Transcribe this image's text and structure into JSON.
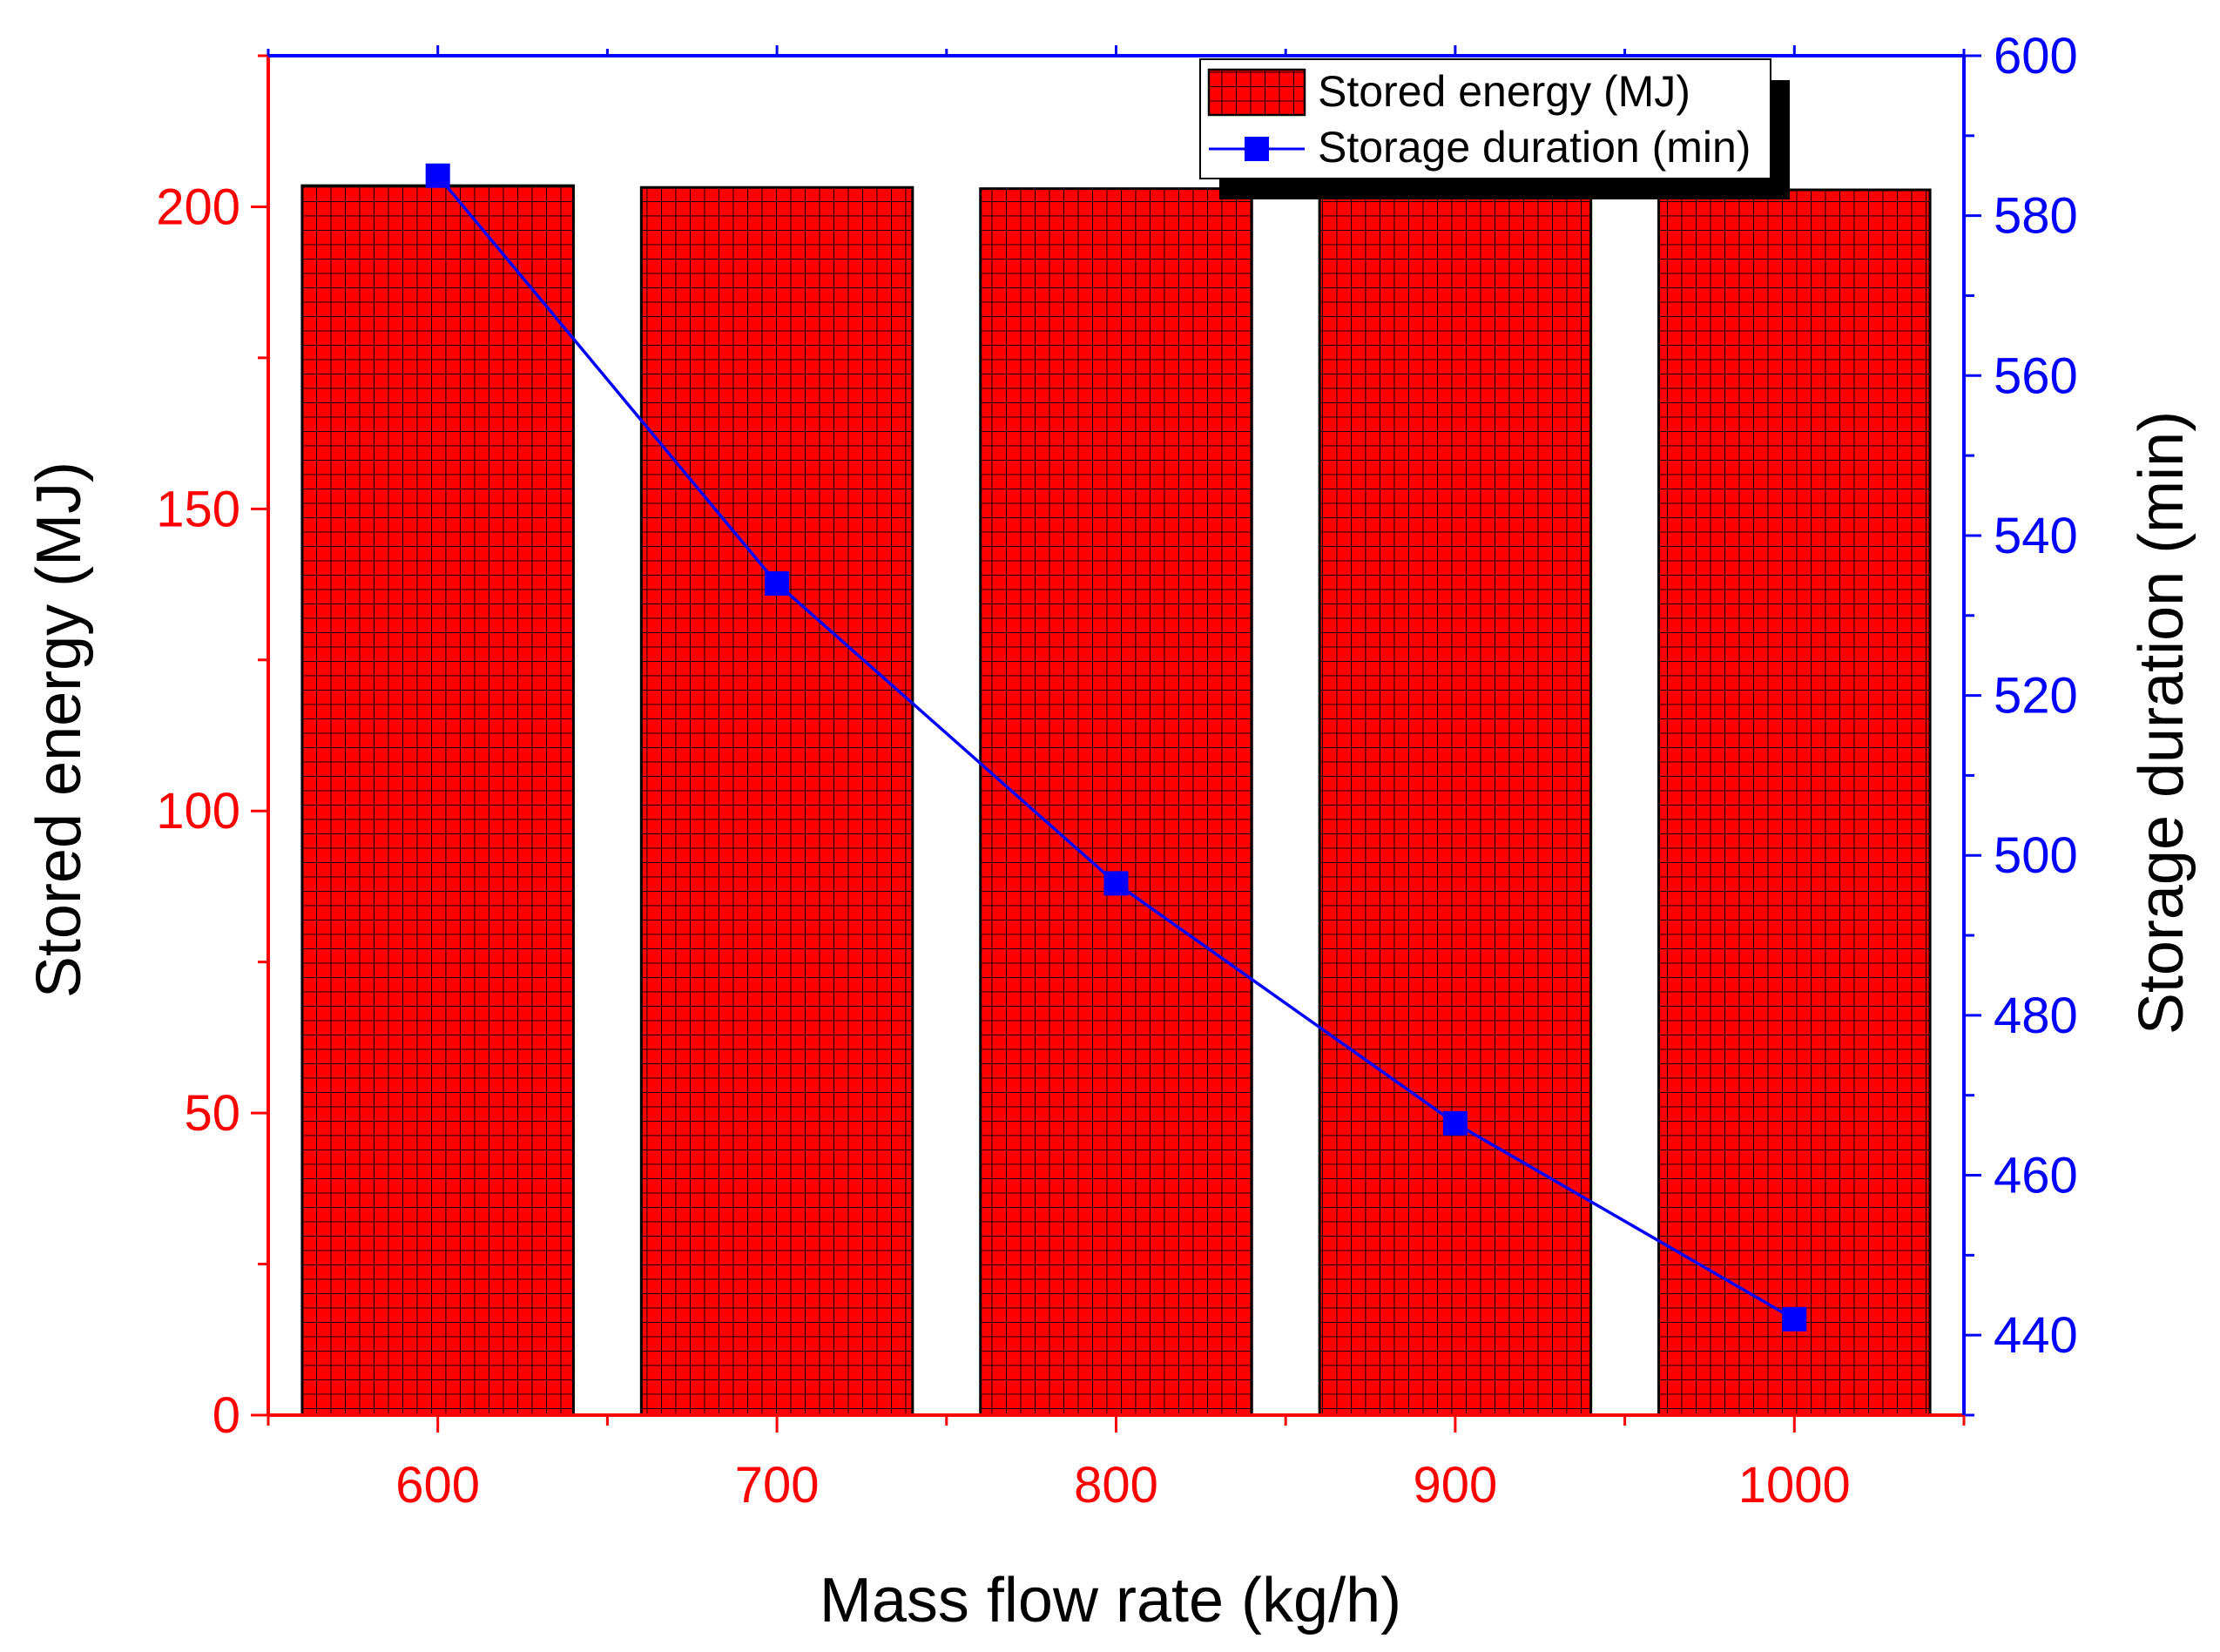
{
  "chart_data": {
    "type": "bar",
    "x": [
      600,
      700,
      800,
      900,
      1000
    ],
    "xlabel": "Mass flow rate (kg/h)",
    "ylabel_left": "Stored energy (MJ)",
    "ylabel_right": "Storage duration (min)",
    "xlim": [
      550,
      1050
    ],
    "ylim_left": [
      0,
      225
    ],
    "ylim_right": [
      430,
      600
    ],
    "xticks": [
      600,
      700,
      800,
      900,
      1000
    ],
    "yticks_left": [
      0,
      50,
      100,
      150,
      200
    ],
    "yticks_right": [
      440,
      460,
      480,
      500,
      520,
      540,
      560,
      580,
      600
    ],
    "grid": false,
    "legend_position": "top-right",
    "series": [
      {
        "name": "Stored energy (MJ)",
        "type": "bar",
        "axis": "left",
        "color": "#ff0000",
        "values": [
          203.5,
          203.2,
          203.0,
          203.1,
          202.8
        ]
      },
      {
        "name": "Storage duration (min)",
        "type": "line",
        "axis": "right",
        "color": "#0000ff",
        "marker": "square",
        "values": [
          585,
          534,
          496.5,
          466.5,
          442
        ]
      }
    ],
    "colors": {
      "left_axis": "#ff0000",
      "right_axis": "#0000ff",
      "frame": "#000000"
    }
  }
}
